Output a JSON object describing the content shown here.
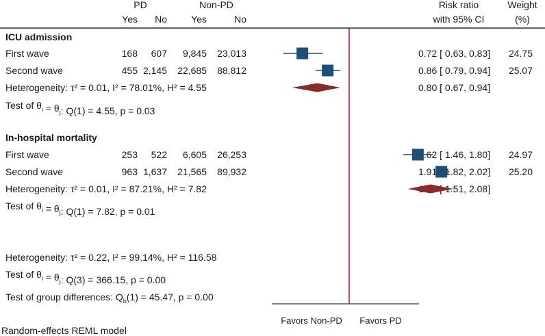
{
  "chart_data": {
    "type": "forest",
    "title": "",
    "headers": {
      "pd": "PD",
      "non_pd": "Non-PD",
      "yes": "Yes",
      "no": "No",
      "rr_line1": "Risk ratio",
      "rr_line2": "with 95% CI",
      "wt_line1": "Weight",
      "wt_line2": "(%)"
    },
    "groups": [
      {
        "title": "ICU admission",
        "studies": [
          {
            "label": "First wave",
            "pd_yes": "168",
            "pd_no": "607",
            "npd_yes": "9,845",
            "npd_no": "23,013",
            "rr": 0.72,
            "lo": 0.63,
            "hi": 0.83,
            "rr_text": "0.72 [ 0.63, 0.83]",
            "weight": "24.75"
          },
          {
            "label": "Second wave",
            "pd_yes": "455",
            "pd_no": "2,145",
            "npd_yes": "22,685",
            "npd_no": "88,812",
            "rr": 0.86,
            "lo": 0.79,
            "hi": 0.94,
            "rr_text": "0.86 [ 0.79, 0.94]",
            "weight": "25.07"
          }
        ],
        "pooled": {
          "label": "Heterogeneity: τ² = 0.01, I² = 78.01%, H² = 4.55",
          "rr": 0.8,
          "lo": 0.67,
          "hi": 0.94,
          "rr_text": "0.80 [ 0.67, 0.94]"
        },
        "test": "Test of θi = θj: Q(1) = 4.55, p = 0.03"
      },
      {
        "title": "In-hospital mortality",
        "studies": [
          {
            "label": "First wave",
            "pd_yes": "253",
            "pd_no": "522",
            "npd_yes": "6,605",
            "npd_no": "26,253",
            "rr": 1.62,
            "lo": 1.46,
            "hi": 1.8,
            "rr_text": "1.62 [ 1.46, 1.80]",
            "weight": "24.97"
          },
          {
            "label": "Second wave",
            "pd_yes": "963",
            "pd_no": "1,637",
            "npd_yes": "21,565",
            "npd_no": "89,932",
            "rr": 1.91,
            "lo": 1.82,
            "hi": 2.02,
            "rr_text": "1.91 [ 1.82, 2.02]",
            "weight": "25.20"
          }
        ],
        "pooled": {
          "label": "Heterogeneity: τ² = 0.01, I² = 87.21%, H² = 7.82",
          "rr": 1.77,
          "lo": 1.51,
          "hi": 2.08,
          "rr_text": "1.77 [ 1.51, 2.08]"
        },
        "test": "Test of θi = θj: Q(1) = 7.82, p = 0.01"
      }
    ],
    "overall": {
      "heterogeneity": "Heterogeneity: τ² = 0.22, I² = 99.14%, H² = 116.58",
      "test": "Test of θi = θj: Q(3) = 366.15, p = 0.00",
      "group_diff": "Test of group differences: Qb(1) = 45.47, p = 0.00"
    },
    "x_scale": "log",
    "reference_line": 1,
    "x_labels": [
      "Favors Non-PD",
      "Favors PD"
    ],
    "footnote": "Random-effects REML model",
    "colors": {
      "marker": "#1f4e79",
      "diamond": "#8b2a2a",
      "ref_line": "#c8102e"
    }
  }
}
